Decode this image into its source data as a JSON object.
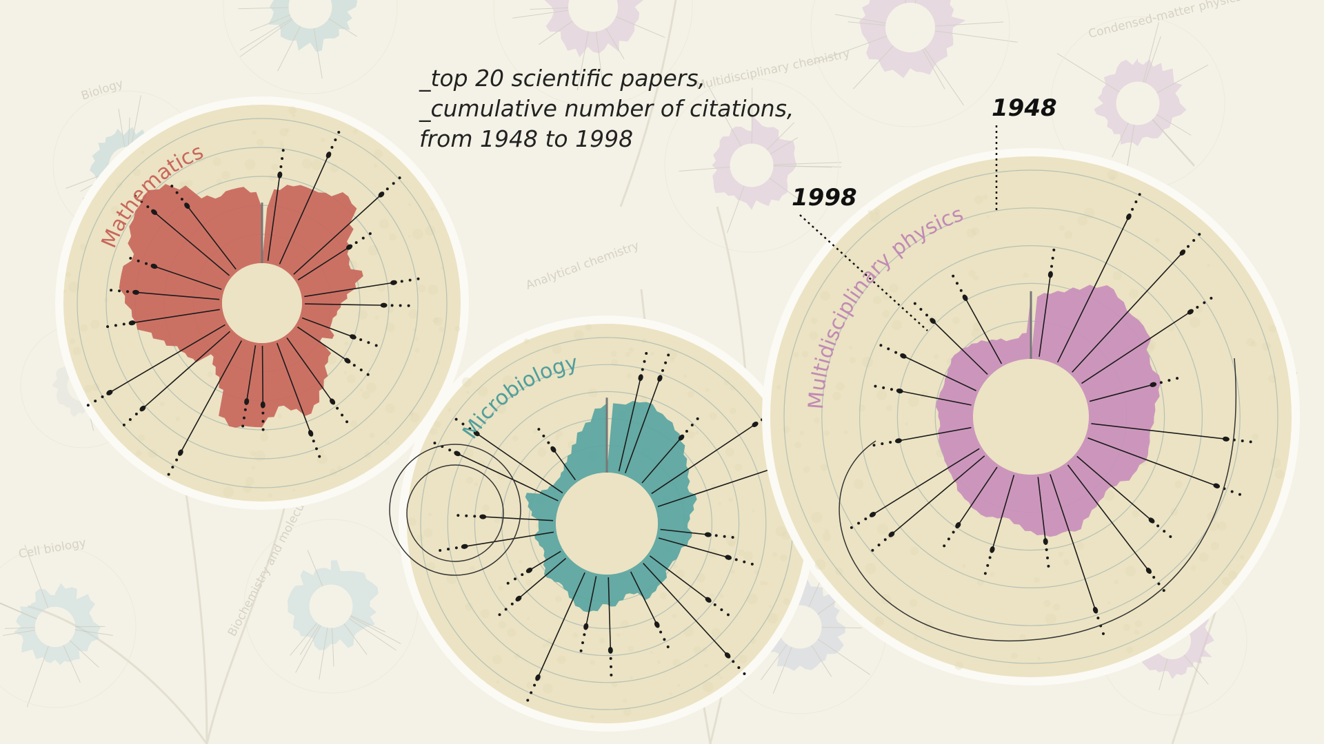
{
  "caption": {
    "line1": "_top 20 scientific papers,",
    "line2": "_cumulative number of citations,",
    "line3": "from 1948 to 1998"
  },
  "colors": {
    "background": "#f4f2e6",
    "disc_fill": "#ebe3c3",
    "mathematics": "#c8675c",
    "microbiology": "#59a5a2",
    "physics": "#c98fbc",
    "ink": "#1a1a1a"
  },
  "background_labels": [
    "Biology",
    "Analytical chemistry",
    "Multidisciplinary chemistry",
    "Condensed-matter physics",
    "Cell biology",
    "Biochemistry and molecular biology"
  ],
  "chart_data": [
    {
      "type": "radial-area",
      "title": "Mathematics",
      "color": "#c8675c",
      "start_year": "1948",
      "end_year": "1998",
      "cumulative_citations_profile": [
        34,
        46,
        50,
        52,
        52,
        54,
        60,
        58,
        48,
        40,
        36,
        34,
        40,
        34,
        28,
        24,
        22,
        20,
        20,
        24,
        18,
        28,
        30,
        36,
        40,
        46,
        50,
        44,
        40,
        46,
        52,
        52,
        54,
        50,
        34,
        28,
        24,
        20,
        30,
        32,
        34,
        40,
        46,
        54,
        56,
        60,
        64,
        64,
        60,
        66,
        70,
        72,
        74,
        70,
        62,
        50,
        46,
        48,
        48,
        44
      ],
      "papers": 20
    },
    {
      "type": "radial-area",
      "title": "Microbiology",
      "color": "#59a5a2",
      "start_year": "1948",
      "end_year": "1998",
      "cumulative_citations_profile": [
        56,
        56,
        60,
        62,
        58,
        56,
        52,
        48,
        42,
        38,
        34,
        30,
        34,
        30,
        26,
        24,
        28,
        26,
        22,
        22,
        20,
        20,
        24,
        24,
        26,
        28,
        20,
        18,
        22,
        26,
        24,
        30,
        32,
        30,
        26,
        22,
        20,
        22,
        24,
        20,
        16,
        14,
        16,
        18,
        14,
        14,
        20,
        24,
        28,
        18,
        14,
        12,
        12,
        14,
        18,
        22,
        28,
        36,
        42,
        52
      ],
      "papers": 20
    },
    {
      "type": "radial-area",
      "title": "Multidisciplinary physics",
      "color": "#c98fbc",
      "start_year": "1948",
      "end_year": "1998",
      "cumulative_citations_profile": [
        86,
        92,
        98,
        108,
        120,
        130,
        124,
        118,
        120,
        118,
        104,
        100,
        106,
        100,
        92,
        90,
        86,
        88,
        90,
        84,
        82,
        72,
        66,
        70,
        74,
        80,
        90,
        86,
        88,
        84,
        78,
        70,
        64,
        68,
        72,
        70,
        66,
        64,
        58,
        56,
        54,
        52,
        52,
        50,
        46,
        48,
        52,
        50,
        48,
        50,
        52,
        56,
        54,
        50,
        46,
        40,
        36,
        30,
        30,
        36
      ],
      "papers": 20
    }
  ]
}
